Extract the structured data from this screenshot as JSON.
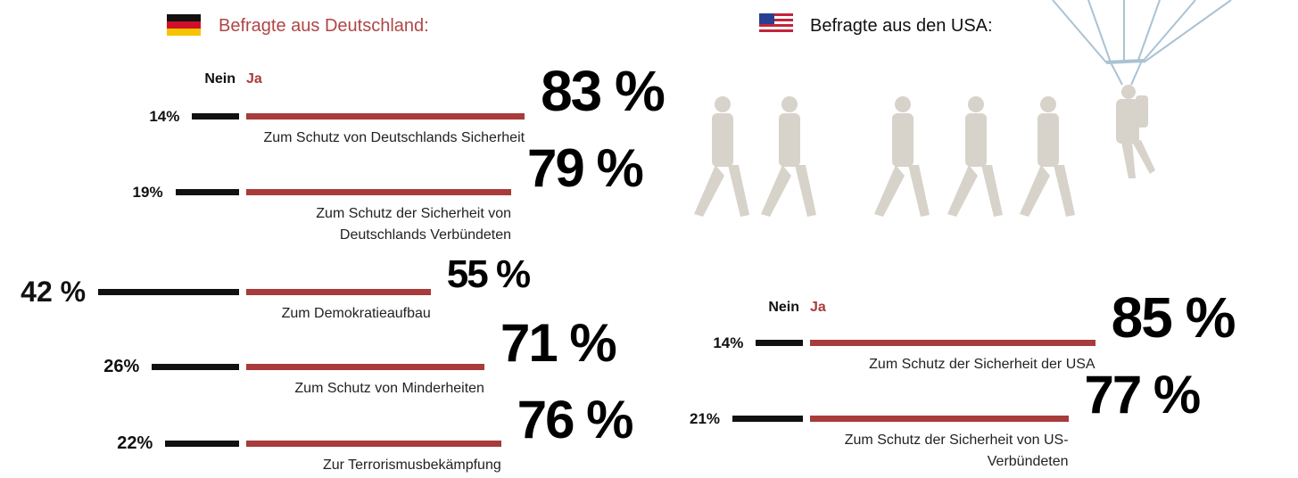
{
  "chart_data": [
    {
      "type": "diverging_bar",
      "title": "Befragte aus Deutschland:",
      "categories": [
        "Zum Schutz von Deutschlands Sicherheit",
        "Zum Schutz der Sicherheit von Deutschlands Verbündeten",
        "Zum Demokratieaufbau",
        "Zum Schutz von Minderheiten",
        "Zur Terrorismusbekämpfung"
      ],
      "series": [
        {
          "name": "Nein",
          "color": "#111111",
          "values": [
            14,
            19,
            42,
            26,
            22
          ],
          "value_labels": [
            "14%",
            "19%",
            "42 %",
            "26%",
            "22%"
          ]
        },
        {
          "name": "Ja",
          "color": "#a83b3b",
          "values": [
            83,
            79,
            55,
            71,
            76
          ],
          "value_labels": [
            "83 %",
            "79 %",
            "55 %",
            "71 %",
            "76 %"
          ]
        }
      ]
    },
    {
      "type": "diverging_bar",
      "title": "Befragte aus den USA:",
      "categories": [
        "Zum Schutz der Sicherheit der USA",
        "Zum Schutz der Sicherheit von US-Verbündeten"
      ],
      "series": [
        {
          "name": "Nein",
          "color": "#111111",
          "values": [
            14,
            21
          ],
          "value_labels": [
            "14%",
            "21%"
          ]
        },
        {
          "name": "Ja",
          "color": "#a83b3b",
          "values": [
            85,
            77
          ],
          "value_labels": [
            "85 %",
            "77 %"
          ]
        }
      ]
    }
  ]
}
